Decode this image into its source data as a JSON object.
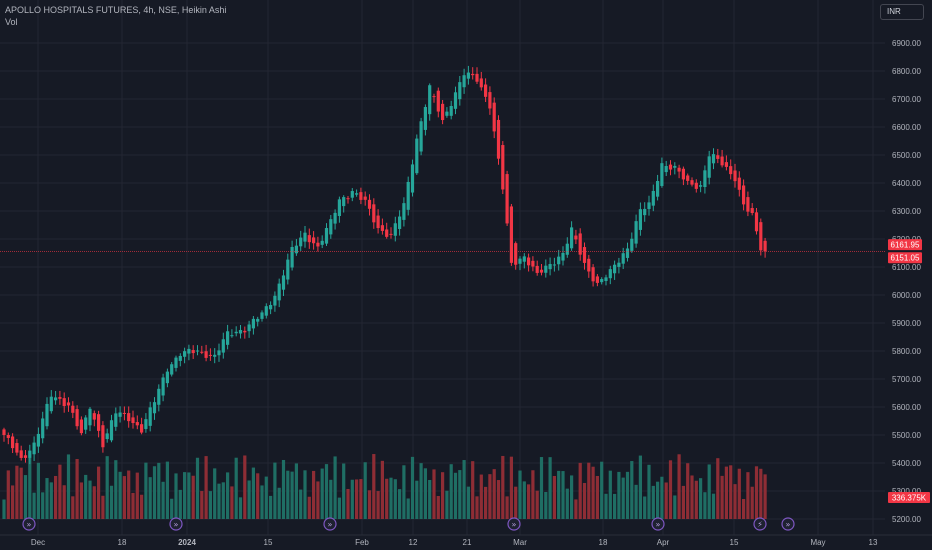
{
  "legend": {
    "title": "APOLLO HOSPITALS FUTURES, 4h, NSE, Heikin Ashi",
    "volume_label": "Vol"
  },
  "currency": "INR",
  "colors": {
    "up": "#26a69a",
    "down": "#f23645",
    "background": "#161a25",
    "grid": "#232632",
    "text": "#b2b5be",
    "vol_up": "#1f6e64",
    "vol_down": "#8e2d35",
    "event": "#7e57c2"
  },
  "events": [
    {
      "date": "Dec 1",
      "icon": "fast-forward-icon"
    },
    {
      "date": "Dec 19",
      "icon": "fast-forward-icon"
    },
    {
      "date": "Feb 1",
      "icon": "fast-forward-icon"
    },
    {
      "date": "Feb 26",
      "icon": "fast-forward-icon"
    },
    {
      "date": "Apr 5",
      "icon": "fast-forward-icon"
    },
    {
      "date": "Apr 22",
      "icon": "lightning-icon"
    },
    {
      "date": "Apr 27",
      "icon": "fast-forward-icon"
    }
  ],
  "chart_data": {
    "type": "candlestick",
    "yticks": [
      5200,
      5300,
      5400,
      5500,
      5600,
      5700,
      5800,
      5900,
      6000,
      6100,
      6200,
      6300,
      6400,
      6500,
      6600,
      6700,
      6800,
      6900
    ],
    "ytick_labels": [
      "5200.00",
      "5300.00",
      "5400.00",
      "5500.00",
      "5600.00",
      "5700.00",
      "5800.00",
      "5900.00",
      "6000.00",
      "6100.00",
      "6200.00",
      "6300.00",
      "6400.00",
      "6500.00",
      "6600.00",
      "6700.00",
      "6800.00",
      "6900.00"
    ],
    "ylim": [
      5150,
      7000
    ],
    "xticks": [
      "Dec",
      "18",
      "2024",
      "15",
      "Feb",
      "12",
      "21",
      "Mar",
      "18",
      "Apr",
      "15",
      "May",
      "13"
    ],
    "grid": true,
    "price_labels": [
      {
        "text": "6161.95",
        "value": 6161.95,
        "color": "#f23645"
      },
      {
        "text": "6151.05",
        "value": 6151.05,
        "color": "#f23645"
      }
    ],
    "current_line": 6156,
    "volume_label": {
      "text": "336.375K",
      "color": "#f23645"
    },
    "anchors": [
      {
        "i": 0,
        "v": 5500
      },
      {
        "i": 4,
        "v": 5410
      },
      {
        "i": 7,
        "v": 5470
      },
      {
        "i": 11,
        "v": 5640
      },
      {
        "i": 15,
        "v": 5610
      },
      {
        "i": 18,
        "v": 5500
      },
      {
        "i": 20,
        "v": 5600
      },
      {
        "i": 23,
        "v": 5470
      },
      {
        "i": 26,
        "v": 5580
      },
      {
        "i": 29,
        "v": 5560
      },
      {
        "i": 32,
        "v": 5520
      },
      {
        "i": 35,
        "v": 5620
      },
      {
        "i": 38,
        "v": 5740
      },
      {
        "i": 41,
        "v": 5790
      },
      {
        "i": 45,
        "v": 5800
      },
      {
        "i": 49,
        "v": 5780
      },
      {
        "i": 52,
        "v": 5860
      },
      {
        "i": 56,
        "v": 5880
      },
      {
        "i": 60,
        "v": 5930
      },
      {
        "i": 63,
        "v": 6000
      },
      {
        "i": 67,
        "v": 6160
      },
      {
        "i": 70,
        "v": 6220
      },
      {
        "i": 73,
        "v": 6170
      },
      {
        "i": 76,
        "v": 6260
      },
      {
        "i": 78,
        "v": 6340
      },
      {
        "i": 81,
        "v": 6370
      },
      {
        "i": 84,
        "v": 6330
      },
      {
        "i": 87,
        "v": 6240
      },
      {
        "i": 90,
        "v": 6210
      },
      {
        "i": 93,
        "v": 6320
      },
      {
        "i": 96,
        "v": 6560
      },
      {
        "i": 99,
        "v": 6740
      },
      {
        "i": 102,
        "v": 6620
      },
      {
        "i": 104,
        "v": 6690
      },
      {
        "i": 107,
        "v": 6790
      },
      {
        "i": 110,
        "v": 6770
      },
      {
        "i": 113,
        "v": 6680
      },
      {
        "i": 116,
        "v": 6380
      },
      {
        "i": 118,
        "v": 6110
      },
      {
        "i": 121,
        "v": 6140
      },
      {
        "i": 124,
        "v": 6070
      },
      {
        "i": 127,
        "v": 6110
      },
      {
        "i": 130,
        "v": 6150
      },
      {
        "i": 132,
        "v": 6230
      },
      {
        "i": 135,
        "v": 6110
      },
      {
        "i": 138,
        "v": 6040
      },
      {
        "i": 141,
        "v": 6080
      },
      {
        "i": 145,
        "v": 6170
      },
      {
        "i": 148,
        "v": 6300
      },
      {
        "i": 150,
        "v": 6320
      },
      {
        "i": 153,
        "v": 6470
      },
      {
        "i": 156,
        "v": 6450
      },
      {
        "i": 159,
        "v": 6400
      },
      {
        "i": 162,
        "v": 6390
      },
      {
        "i": 164,
        "v": 6500
      },
      {
        "i": 167,
        "v": 6470
      },
      {
        "i": 170,
        "v": 6420
      },
      {
        "i": 172,
        "v": 6320
      },
      {
        "i": 174,
        "v": 6280
      },
      {
        "i": 176,
        "v": 6170
      },
      {
        "i": 177,
        "v": 6156
      }
    ],
    "volume_range": [
      0,
      1000000
    ],
    "volume_max_bar": 900000
  }
}
